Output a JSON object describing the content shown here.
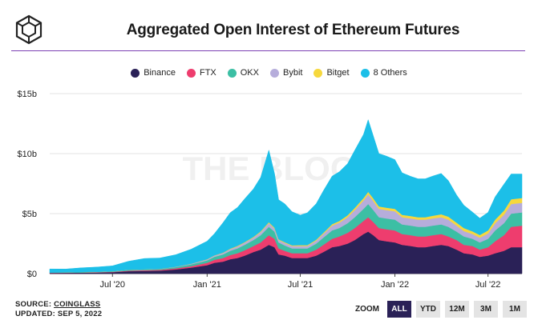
{
  "title": "Aggregated Open Interest of Ethereum Futures",
  "watermark": "THE BLOCK",
  "legend": [
    {
      "name": "Binance",
      "color": "#2a2157"
    },
    {
      "name": "FTX",
      "color": "#ee3d6e"
    },
    {
      "name": "OKX",
      "color": "#3cbfa4"
    },
    {
      "name": "Bybit",
      "color": "#b6addb"
    },
    {
      "name": "Bitget",
      "color": "#f6d83d"
    },
    {
      "name": "8 Others",
      "color": "#1cbfe8"
    }
  ],
  "source_label": "SOURCE:",
  "source_name": "COINGLASS",
  "updated": "UPDATED: SEP 5, 2022",
  "zoom": {
    "label": "ZOOM",
    "buttons": [
      "ALL",
      "YTD",
      "12M",
      "3M",
      "1M"
    ],
    "active": "ALL"
  },
  "chart_data": {
    "type": "area",
    "stacked": true,
    "ylim": [
      0,
      15
    ],
    "y_ticks": [
      {
        "value": 0,
        "label": "$0"
      },
      {
        "value": 5,
        "label": "$5b"
      },
      {
        "value": 10,
        "label": "$10b"
      },
      {
        "value": 15,
        "label": "$15b"
      }
    ],
    "x_ticks": [
      {
        "date": "2020-07-01",
        "label": "Jul '20"
      },
      {
        "date": "2021-01-01",
        "label": "Jan '21"
      },
      {
        "date": "2021-07-01",
        "label": "Jul '21"
      },
      {
        "date": "2022-01-01",
        "label": "Jan '22"
      },
      {
        "date": "2022-07-01",
        "label": "Jul '22"
      }
    ],
    "x_range": [
      "2020-03-01",
      "2022-09-05"
    ],
    "x": [
      "2020-03-01",
      "2020-04-01",
      "2020-05-01",
      "2020-06-01",
      "2020-07-01",
      "2020-08-01",
      "2020-09-01",
      "2020-10-01",
      "2020-11-01",
      "2020-12-01",
      "2021-01-01",
      "2021-01-15",
      "2021-02-01",
      "2021-02-15",
      "2021-03-01",
      "2021-03-15",
      "2021-04-01",
      "2021-04-15",
      "2021-05-01",
      "2021-05-12",
      "2021-05-20",
      "2021-06-01",
      "2021-06-15",
      "2021-07-01",
      "2021-07-15",
      "2021-08-01",
      "2021-08-15",
      "2021-09-01",
      "2021-09-15",
      "2021-10-01",
      "2021-10-15",
      "2021-11-01",
      "2021-11-10",
      "2021-11-20",
      "2021-12-01",
      "2021-12-15",
      "2022-01-01",
      "2022-01-15",
      "2022-02-01",
      "2022-02-15",
      "2022-03-01",
      "2022-03-15",
      "2022-04-01",
      "2022-04-15",
      "2022-05-01",
      "2022-05-15",
      "2022-06-01",
      "2022-06-15",
      "2022-07-01",
      "2022-07-15",
      "2022-08-01",
      "2022-08-15",
      "2022-09-05"
    ],
    "series": [
      {
        "name": "Binance",
        "values": [
          0.06,
          0.07,
          0.08,
          0.09,
          0.12,
          0.2,
          0.22,
          0.25,
          0.35,
          0.5,
          0.7,
          0.9,
          1.0,
          1.2,
          1.3,
          1.5,
          1.8,
          2.0,
          2.4,
          2.2,
          1.6,
          1.5,
          1.3,
          1.3,
          1.3,
          1.5,
          1.8,
          2.2,
          2.3,
          2.5,
          2.8,
          3.3,
          3.5,
          3.2,
          2.8,
          2.7,
          2.6,
          2.4,
          2.3,
          2.2,
          2.2,
          2.3,
          2.4,
          2.3,
          2.0,
          1.7,
          1.6,
          1.4,
          1.5,
          1.7,
          1.9,
          2.2,
          2.2
        ]
      },
      {
        "name": "FTX",
        "values": [
          0.01,
          0.01,
          0.01,
          0.02,
          0.03,
          0.05,
          0.06,
          0.06,
          0.09,
          0.12,
          0.2,
          0.25,
          0.3,
          0.35,
          0.4,
          0.45,
          0.5,
          0.6,
          0.8,
          0.7,
          0.5,
          0.4,
          0.4,
          0.4,
          0.4,
          0.5,
          0.6,
          0.7,
          0.8,
          0.9,
          1.0,
          1.1,
          1.2,
          1.1,
          1.0,
          1.0,
          1.0,
          0.9,
          0.9,
          0.9,
          0.9,
          0.9,
          0.9,
          0.8,
          0.8,
          0.7,
          0.7,
          0.6,
          0.7,
          1.0,
          1.3,
          1.7,
          1.8
        ]
      },
      {
        "name": "OKX",
        "values": [
          0.02,
          0.02,
          0.03,
          0.03,
          0.04,
          0.06,
          0.06,
          0.07,
          0.1,
          0.15,
          0.2,
          0.25,
          0.3,
          0.35,
          0.4,
          0.45,
          0.5,
          0.6,
          0.7,
          0.6,
          0.5,
          0.45,
          0.4,
          0.4,
          0.4,
          0.5,
          0.6,
          0.7,
          0.7,
          0.8,
          0.9,
          1.0,
          1.1,
          1.0,
          0.9,
          0.9,
          0.9,
          0.8,
          0.8,
          0.8,
          0.8,
          0.8,
          0.8,
          0.8,
          0.7,
          0.7,
          0.6,
          0.6,
          0.7,
          0.9,
          1.0,
          1.1,
          1.1
        ]
      },
      {
        "name": "Bybit",
        "values": [
          0.0,
          0.0,
          0.01,
          0.01,
          0.01,
          0.02,
          0.02,
          0.02,
          0.03,
          0.05,
          0.08,
          0.1,
          0.12,
          0.14,
          0.16,
          0.18,
          0.2,
          0.25,
          0.3,
          0.25,
          0.2,
          0.2,
          0.2,
          0.2,
          0.2,
          0.25,
          0.3,
          0.4,
          0.45,
          0.5,
          0.6,
          0.7,
          0.8,
          0.75,
          0.7,
          0.7,
          0.7,
          0.6,
          0.6,
          0.6,
          0.6,
          0.6,
          0.6,
          0.6,
          0.5,
          0.45,
          0.4,
          0.4,
          0.45,
          0.6,
          0.7,
          0.8,
          0.8
        ]
      },
      {
        "name": "Bitget",
        "values": [
          0.0,
          0.0,
          0.0,
          0.0,
          0.0,
          0.0,
          0.0,
          0.0,
          0.0,
          0.01,
          0.02,
          0.02,
          0.03,
          0.04,
          0.05,
          0.05,
          0.06,
          0.07,
          0.09,
          0.08,
          0.06,
          0.06,
          0.06,
          0.07,
          0.07,
          0.08,
          0.1,
          0.12,
          0.14,
          0.16,
          0.18,
          0.2,
          0.22,
          0.22,
          0.2,
          0.2,
          0.2,
          0.2,
          0.2,
          0.2,
          0.2,
          0.22,
          0.25,
          0.25,
          0.25,
          0.25,
          0.22,
          0.22,
          0.25,
          0.3,
          0.35,
          0.4,
          0.4
        ]
      },
      {
        "name": "8 Others",
        "values": [
          0.3,
          0.28,
          0.35,
          0.4,
          0.45,
          0.7,
          0.9,
          0.9,
          1.0,
          1.2,
          1.5,
          1.8,
          2.5,
          3.0,
          3.2,
          3.6,
          4.0,
          4.5,
          6.0,
          4.5,
          3.3,
          3.2,
          2.8,
          2.5,
          2.7,
          3.0,
          3.5,
          4.0,
          4.1,
          4.3,
          4.8,
          5.3,
          6.0,
          5.2,
          4.4,
          4.3,
          4.1,
          3.5,
          3.3,
          3.2,
          3.2,
          3.3,
          3.4,
          3.0,
          2.3,
          1.9,
          1.6,
          1.4,
          1.5,
          1.9,
          2.2,
          2.1,
          2.0
        ]
      }
    ]
  }
}
